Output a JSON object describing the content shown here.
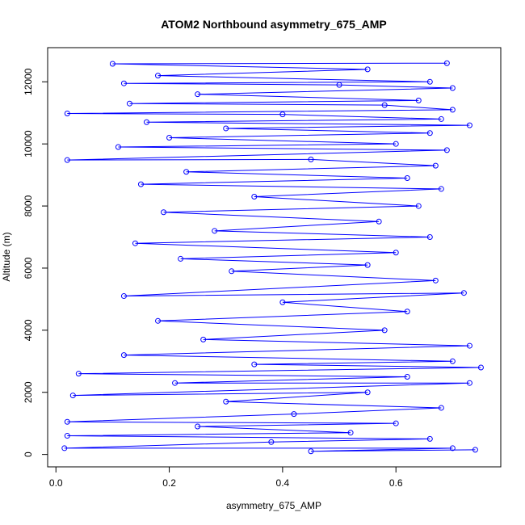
{
  "chart_data": {
    "type": "line",
    "markers": true,
    "title": "ATOM2 Northbound asymmetry_675_AMP",
    "x_label": "asymmetry_675_AMP",
    "y_label": "Altitude (m)",
    "color": "#0000ff",
    "xlim": [
      -0.0146,
      0.785
    ],
    "ylim": [
      -400,
      13100
    ],
    "xticks": [
      {
        "value": 0,
        "label": "0.0"
      },
      0.2,
      0.4,
      0.6
    ],
    "yticks": [
      0,
      2000,
      4000,
      6000,
      8000,
      10000,
      12000
    ],
    "x": [
      0.69,
      0.1,
      0.55,
      0.18,
      0.66,
      0.12,
      0.5,
      0.7,
      0.25,
      0.64,
      0.13,
      0.58,
      0.7,
      0.02,
      0.4,
      0.68,
      0.16,
      0.73,
      0.3,
      0.66,
      0.2,
      0.6,
      0.11,
      0.69,
      0.02,
      0.45,
      0.67,
      0.23,
      0.62,
      0.15,
      0.68,
      0.35,
      0.64,
      0.19,
      0.57,
      0.28,
      0.66,
      0.14,
      0.6,
      0.22,
      0.55,
      0.31,
      0.67,
      0.12,
      0.72,
      0.4,
      0.62,
      0.18,
      0.58,
      0.26,
      0.73,
      0.12,
      0.7,
      0.35,
      0.75,
      0.04,
      0.62,
      0.21,
      0.73,
      0.03,
      0.55,
      0.3,
      0.68,
      0.42,
      0.02,
      0.6,
      0.25,
      0.52,
      0.02,
      0.66,
      0.38,
      0.015,
      0.7,
      0.45,
      0.74
    ],
    "y": [
      12600,
      12580,
      12400,
      12200,
      12000,
      11950,
      11900,
      11800,
      11600,
      11400,
      11300,
      11250,
      11100,
      10980,
      10950,
      10800,
      10700,
      10600,
      10500,
      10350,
      10200,
      10000,
      9900,
      9800,
      9480,
      9500,
      9300,
      9100,
      8900,
      8700,
      8550,
      8300,
      8000,
      7800,
      7500,
      7200,
      7000,
      6800,
      6500,
      6300,
      6100,
      5900,
      5600,
      5100,
      5200,
      4900,
      4600,
      4300,
      4000,
      3700,
      3500,
      3200,
      3000,
      2900,
      2800,
      2600,
      2500,
      2300,
      2300,
      1900,
      2000,
      1700,
      1500,
      1300,
      1050,
      1000,
      900,
      700,
      600,
      500,
      400,
      200,
      200,
      100,
      150
    ]
  }
}
